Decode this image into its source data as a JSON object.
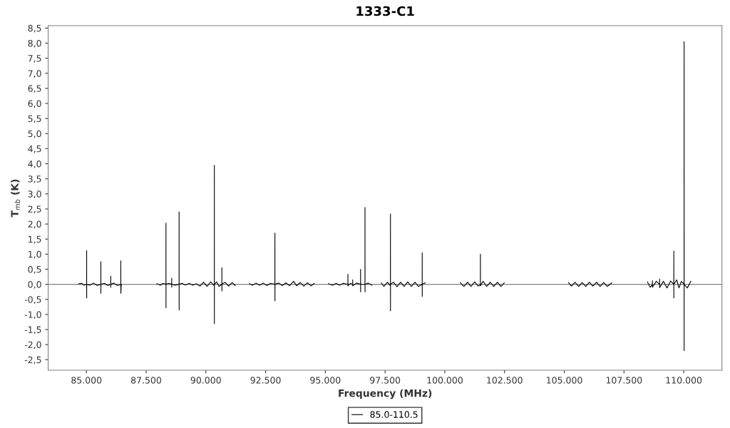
{
  "chart_data": {
    "type": "line",
    "title": "1333-C1",
    "xlabel": "Frequency (MHz)",
    "ylabel": "T$_{mb}$ (K)",
    "xlim": [
      83400,
      111600
    ],
    "ylim": [
      -2.85,
      8.58
    ],
    "xticks": [
      {
        "value": 85000,
        "label": "85.000"
      },
      {
        "value": 87500,
        "label": "87.500"
      },
      {
        "value": 90000,
        "label": "90.000"
      },
      {
        "value": 92500,
        "label": "92.500"
      },
      {
        "value": 95000,
        "label": "95.000"
      },
      {
        "value": 97500,
        "label": "97.500"
      },
      {
        "value": 100000,
        "label": "100.000"
      },
      {
        "value": 102500,
        "label": "102.500"
      },
      {
        "value": 105000,
        "label": "105.000"
      },
      {
        "value": 107500,
        "label": "107.500"
      },
      {
        "value": 110000,
        "label": "110.000"
      }
    ],
    "yticks": [
      {
        "value": -2.5,
        "label": "-2,5"
      },
      {
        "value": -2,
        "label": "-2,0"
      },
      {
        "value": -1.5,
        "label": "-1,5"
      },
      {
        "value": -1,
        "label": "-1,0"
      },
      {
        "value": -0.5,
        "label": "-0,5"
      },
      {
        "value": 0,
        "label": "0,0"
      },
      {
        "value": 0.5,
        "label": "0,5"
      },
      {
        "value": 1,
        "label": "1,0"
      },
      {
        "value": 1.5,
        "label": "1,5"
      },
      {
        "value": 2,
        "label": "2,0"
      },
      {
        "value": 2.5,
        "label": "2,5"
      },
      {
        "value": 3,
        "label": "3,0"
      },
      {
        "value": 3.5,
        "label": "3,5"
      },
      {
        "value": 4,
        "label": "4,0"
      },
      {
        "value": 4.5,
        "label": "4,5"
      },
      {
        "value": 5,
        "label": "5,0"
      },
      {
        "value": 5.5,
        "label": "5,5"
      },
      {
        "value": 6,
        "label": "6,0"
      },
      {
        "value": 6.5,
        "label": "6,5"
      },
      {
        "value": 7,
        "label": "7,0"
      },
      {
        "value": 7.5,
        "label": "7,5"
      },
      {
        "value": 8,
        "label": "8,0"
      },
      {
        "value": 8.5,
        "label": "8,5"
      }
    ],
    "grid": false,
    "legend": "bottom",
    "marker": "none",
    "line_style": "solid",
    "ref_lines": [
      {
        "axis": "y",
        "value": 0,
        "label": null,
        "color": "#808080"
      }
    ],
    "series": [
      {
        "name": "85.0-110.5",
        "color": "#000000",
        "x": [
          84670,
          84800,
          84900,
          85009,
          85010,
          85011,
          85012,
          85150,
          85300,
          85450,
          85604,
          85605,
          85606,
          85607,
          85750,
          85900,
          86019,
          86020,
          86021,
          86022,
          86150,
          86300,
          86439,
          86440,
          86441,
          86460,
          86500,
          87950,
          88100,
          88200,
          88329,
          88330,
          88331,
          88332,
          88450,
          88569,
          88570,
          88571,
          88572,
          88700,
          88879,
          88880,
          88881,
          88882,
          89000,
          89150,
          89300,
          89450,
          89600,
          89750,
          89900,
          90050,
          90200,
          90354,
          90355,
          90356,
          90357,
          90450,
          90550,
          90669,
          90670,
          90671,
          90672,
          90800,
          90950,
          91100,
          91230,
          91500,
          91820,
          91950,
          92100,
          92250,
          92400,
          92550,
          92700,
          92889,
          92890,
          92891,
          92892,
          93050,
          93200,
          93350,
          93500,
          93670,
          93800,
          93950,
          94100,
          94250,
          94400,
          94540,
          94800,
          95130,
          95300,
          95450,
          95600,
          95750,
          95944,
          95945,
          95946,
          96050,
          96144,
          96145,
          96146,
          96300,
          96474,
          96475,
          96476,
          96477,
          96659,
          96660,
          96661,
          96662,
          96800,
          96950,
          97150,
          97340,
          97450,
          97600,
          97724,
          97725,
          97726,
          97727,
          97850,
          98000,
          98150,
          98300,
          98450,
          98600,
          98750,
          98900,
          99054,
          99055,
          99056,
          99057,
          99185,
          99900,
          100645,
          100800,
          100950,
          101100,
          101250,
          101400,
          101489,
          101490,
          101491,
          101600,
          101750,
          101900,
          102050,
          102200,
          102350,
          102490,
          103800,
          105175,
          105300,
          105450,
          105600,
          105750,
          105900,
          106050,
          106200,
          106350,
          106500,
          106650,
          106800,
          106990,
          107700,
          108480,
          108600,
          108689,
          108690,
          108691,
          108850,
          108989,
          108990,
          108991,
          109150,
          109300,
          109450,
          109584,
          109585,
          109586,
          109587,
          109705,
          109800,
          109900,
          110014,
          110015,
          110016,
          110017,
          110150,
          110300
        ],
        "values": [
          0.01,
          0.03,
          -0.03,
          0.0,
          1.12,
          -0.45,
          0.0,
          -0.03,
          0.04,
          -0.04,
          0.0,
          0.75,
          -0.3,
          0.0,
          0.03,
          -0.04,
          0.0,
          0.27,
          -0.1,
          0.0,
          0.04,
          -0.04,
          0.0,
          0.78,
          -0.3,
          0.0,
          null,
          0.02,
          -0.03,
          0.03,
          0.0,
          2.03,
          -0.78,
          0.0,
          0.03,
          0.0,
          0.2,
          -0.1,
          0.0,
          -0.03,
          0.0,
          2.4,
          -0.85,
          0.0,
          0.03,
          -0.02,
          0.03,
          -0.03,
          0.02,
          -0.06,
          0.07,
          -0.07,
          0.08,
          -0.05,
          3.95,
          -1.3,
          0.0,
          0.08,
          -0.07,
          0.0,
          0.55,
          -0.22,
          0.0,
          0.07,
          -0.06,
          0.06,
          -0.04,
          null,
          0.02,
          -0.03,
          0.04,
          -0.03,
          0.04,
          -0.04,
          0.03,
          0.0,
          1.7,
          -0.55,
          0.0,
          0.04,
          -0.04,
          0.05,
          -0.05,
          0.1,
          -0.05,
          0.06,
          -0.06,
          0.05,
          -0.05,
          0.03,
          null,
          0.02,
          -0.03,
          0.03,
          -0.03,
          0.03,
          0.0,
          0.33,
          -0.05,
          0.03,
          0.0,
          0.15,
          -0.05,
          0.04,
          0.0,
          0.5,
          -0.25,
          0.0,
          0.0,
          2.55,
          -0.25,
          0.0,
          0.04,
          -0.03,
          null,
          0.05,
          -0.07,
          0.07,
          -0.05,
          2.33,
          -0.88,
          0.0,
          0.07,
          -0.08,
          0.07,
          -0.07,
          0.08,
          -0.07,
          0.07,
          -0.07,
          0.0,
          1.05,
          -0.4,
          0.0,
          0.05,
          null,
          0.06,
          -0.07,
          0.07,
          -0.07,
          0.08,
          -0.06,
          0.0,
          1.0,
          -0.05,
          0.1,
          -0.07,
          0.07,
          -0.07,
          0.07,
          -0.07,
          0.05,
          null,
          0.06,
          -0.06,
          0.07,
          -0.07,
          0.06,
          -0.07,
          0.07,
          -0.06,
          0.07,
          -0.07,
          0.06,
          -0.07,
          0.05,
          null,
          0.08,
          -0.1,
          0.0,
          0.12,
          -0.1,
          0.1,
          0.0,
          0.17,
          -0.11,
          0.1,
          -0.12,
          0.11,
          0.0,
          1.1,
          -0.45,
          0.0,
          0.15,
          -0.12,
          0.1,
          0.0,
          8.05,
          -2.2,
          0.0,
          -0.12,
          0.1
        ]
      }
    ]
  }
}
